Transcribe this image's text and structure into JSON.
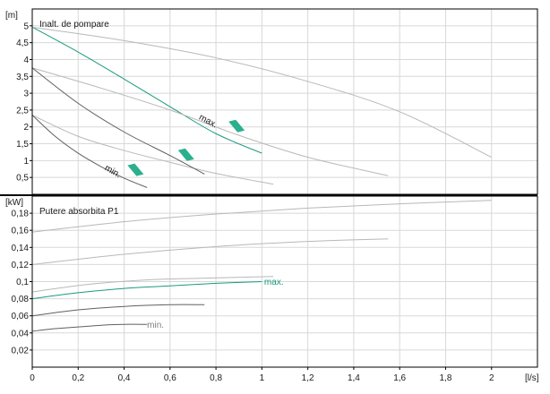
{
  "chart_data": [
    {
      "type": "line",
      "title": "Inalt. de pompare",
      "ylabel": "[m]",
      "xlim": [
        0,
        2.2
      ],
      "ylim": [
        0,
        5.5
      ],
      "yticks": [
        0.5,
        1,
        1.5,
        2,
        2.5,
        3,
        3.5,
        4,
        4.5,
        5
      ],
      "ytick_labels": [
        "0,5",
        "1",
        "1,5",
        "2",
        "2,5",
        "3",
        "3,5",
        "4",
        "4,5",
        "5"
      ],
      "grid": true,
      "series": [
        {
          "name": "max.",
          "color": "#1a9a7e",
          "x": [
            0,
            0.2,
            0.4,
            0.6,
            0.8,
            1.0
          ],
          "y": [
            4.96,
            4.22,
            3.42,
            2.6,
            1.8,
            1.22
          ]
        },
        {
          "color": "#b8b8b8",
          "x": [
            0,
            0.4,
            0.8,
            1.2,
            1.6,
            2.0
          ],
          "y": [
            4.96,
            4.56,
            4.05,
            3.35,
            2.45,
            1.1
          ]
        },
        {
          "color": "#b8b8b8",
          "x": [
            0,
            0.3,
            0.6,
            0.9,
            1.2,
            1.55
          ],
          "y": [
            3.75,
            3.15,
            2.5,
            1.75,
            1.1,
            0.55
          ]
        },
        {
          "color": "#b8b8b8",
          "x": [
            0,
            0.2,
            0.4,
            0.6,
            0.8,
            1.05
          ],
          "y": [
            2.35,
            1.72,
            1.3,
            0.95,
            0.62,
            0.3
          ]
        },
        {
          "color": "#606060",
          "x": [
            0,
            0.2,
            0.4,
            0.6,
            0.75
          ],
          "y": [
            3.75,
            2.7,
            1.85,
            1.15,
            0.6
          ]
        },
        {
          "name": "min.",
          "color": "#606060",
          "x": [
            0,
            0.1,
            0.2,
            0.3,
            0.4,
            0.5
          ],
          "y": [
            2.35,
            1.72,
            1.22,
            0.82,
            0.48,
            0.2
          ]
        }
      ],
      "curve_labels": [
        {
          "text": "max.",
          "color": "#1a1a1a",
          "at": [
            0.73,
            2.32
          ],
          "angle": 28
        },
        {
          "text": "min.",
          "color": "#1a1a1a",
          "at": [
            0.32,
            0.82
          ],
          "angle": 30
        }
      ],
      "markers": [
        {
          "color": "#2bb08f",
          "at": [
            0.89,
            2.0
          ]
        },
        {
          "color": "#2bb08f",
          "at": [
            0.67,
            1.15
          ]
        },
        {
          "color": "#2bb08f",
          "at": [
            0.45,
            0.7
          ]
        }
      ]
    },
    {
      "type": "line",
      "title": "Putere absorbita P1",
      "ylabel": "[kW]",
      "xlabel": "[l/s]",
      "xlim": [
        0,
        2.2
      ],
      "ylim": [
        0,
        0.2
      ],
      "xticks": [
        0,
        0.2,
        0.4,
        0.6,
        0.8,
        1,
        1.2,
        1.4,
        1.6,
        1.8,
        2
      ],
      "xtick_labels": [
        "0",
        "0,2",
        "0,4",
        "0,6",
        "0,8",
        "1",
        "1,2",
        "1,4",
        "1,6",
        "1,8",
        "2"
      ],
      "yticks": [
        0.02,
        0.04,
        0.06,
        0.08,
        0.1,
        0.12,
        0.14,
        0.16,
        0.18
      ],
      "ytick_labels": [
        "0,02",
        "0,04",
        "0,06",
        "0,08",
        "0,1",
        "0,12",
        "0,14",
        "0,16",
        "0,18"
      ],
      "grid": true,
      "series": [
        {
          "name": "max.",
          "color": "#1a9a7e",
          "x": [
            0,
            0.2,
            0.4,
            0.6,
            0.8,
            1.0
          ],
          "y": [
            0.08,
            0.087,
            0.092,
            0.095,
            0.098,
            0.1
          ]
        },
        {
          "color": "#b8b8b8",
          "x": [
            0,
            0.4,
            0.8,
            1.2,
            1.6,
            2.0
          ],
          "y": [
            0.158,
            0.17,
            0.179,
            0.186,
            0.191,
            0.195
          ]
        },
        {
          "color": "#b8b8b8",
          "x": [
            0,
            0.4,
            0.8,
            1.2,
            1.55
          ],
          "y": [
            0.12,
            0.132,
            0.141,
            0.147,
            0.15
          ]
        },
        {
          "color": "#b8b8b8",
          "x": [
            0,
            0.25,
            0.5,
            0.75,
            1.05
          ],
          "y": [
            0.088,
            0.097,
            0.102,
            0.104,
            0.106
          ]
        },
        {
          "color": "#606060",
          "x": [
            0,
            0.2,
            0.4,
            0.6,
            0.75
          ],
          "y": [
            0.06,
            0.067,
            0.071,
            0.073,
            0.073
          ]
        },
        {
          "name": "min.",
          "color": "#606060",
          "x": [
            0,
            0.1,
            0.2,
            0.3,
            0.4,
            0.5
          ],
          "y": [
            0.042,
            0.045,
            0.047,
            0.049,
            0.05,
            0.05
          ]
        }
      ],
      "curve_labels": [
        {
          "text": "max.",
          "color": "#1a9a7e",
          "at": [
            1.01,
            0.1
          ],
          "angle": 0
        },
        {
          "text": "min.",
          "color": "#808080",
          "at": [
            0.5,
            0.05
          ],
          "angle": 0
        }
      ]
    }
  ]
}
